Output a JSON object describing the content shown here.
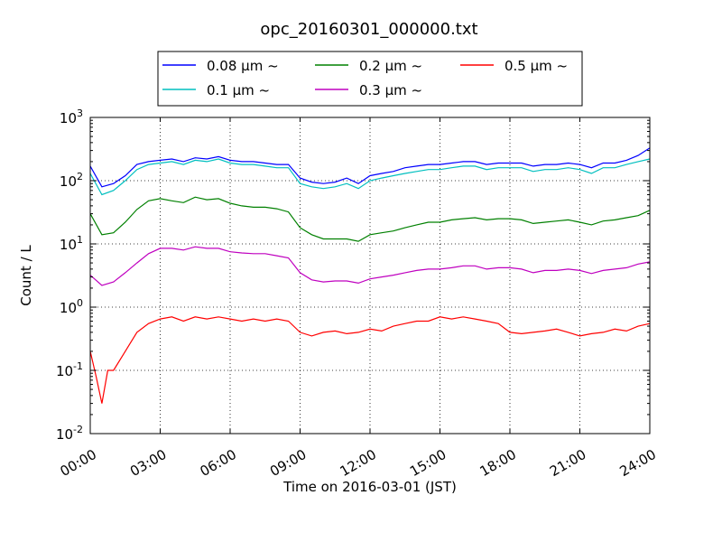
{
  "chart_data": {
    "type": "line",
    "title": "opc_20160301_000000.txt",
    "xlabel": "Time on 2016-03-01 (JST)",
    "ylabel": "Count / L",
    "y_scale": "log",
    "ylim": [
      0.01,
      1000
    ],
    "xlim": [
      "00:00",
      "24:00"
    ],
    "grid": true,
    "legend_position": "top-center",
    "x_ticks": [
      "00:00",
      "03:00",
      "06:00",
      "09:00",
      "12:00",
      "15:00",
      "18:00",
      "21:00",
      "24:00"
    ],
    "y_ticks": [
      {
        "base": "10",
        "exp": "-2"
      },
      {
        "base": "10",
        "exp": "-1"
      },
      {
        "base": "10",
        "exp": "0"
      },
      {
        "base": "10",
        "exp": "1"
      },
      {
        "base": "10",
        "exp": "2"
      },
      {
        "base": "10",
        "exp": "3"
      }
    ],
    "series": [
      {
        "name": "0.08 μm ~",
        "color": "#0000ff",
        "x": [
          "00:00",
          "00:30",
          "01:00",
          "01:30",
          "02:00",
          "02:30",
          "03:00",
          "03:30",
          "04:00",
          "04:30",
          "05:00",
          "05:30",
          "06:00",
          "06:30",
          "07:00",
          "07:30",
          "08:00",
          "08:30",
          "09:00",
          "09:30",
          "10:00",
          "10:30",
          "11:00",
          "11:30",
          "12:00",
          "12:30",
          "13:00",
          "13:30",
          "14:00",
          "14:30",
          "15:00",
          "15:30",
          "16:00",
          "16:30",
          "17:00",
          "17:30",
          "18:00",
          "18:30",
          "19:00",
          "19:30",
          "20:00",
          "20:30",
          "21:00",
          "21:30",
          "22:00",
          "22:30",
          "23:00",
          "23:30",
          "24:00"
        ],
        "y": [
          170,
          80,
          90,
          120,
          180,
          200,
          210,
          220,
          200,
          230,
          220,
          240,
          210,
          200,
          200,
          190,
          180,
          180,
          110,
          95,
          90,
          95,
          110,
          90,
          120,
          130,
          140,
          160,
          170,
          180,
          180,
          190,
          200,
          200,
          180,
          190,
          190,
          190,
          170,
          180,
          180,
          190,
          180,
          160,
          190,
          190,
          210,
          250,
          330
        ]
      },
      {
        "name": "0.1 μm ~",
        "color": "#00bfbf",
        "x": [
          "00:00",
          "00:30",
          "01:00",
          "01:30",
          "02:00",
          "02:30",
          "03:00",
          "03:30",
          "04:00",
          "04:30",
          "05:00",
          "05:30",
          "06:00",
          "06:30",
          "07:00",
          "07:30",
          "08:00",
          "08:30",
          "09:00",
          "09:30",
          "10:00",
          "10:30",
          "11:00",
          "11:30",
          "12:00",
          "12:30",
          "13:00",
          "13:30",
          "14:00",
          "14:30",
          "15:00",
          "15:30",
          "16:00",
          "16:30",
          "17:00",
          "17:30",
          "18:00",
          "18:30",
          "19:00",
          "19:30",
          "20:00",
          "20:30",
          "21:00",
          "21:30",
          "22:00",
          "22:30",
          "23:00",
          "23:30",
          "24:00"
        ],
        "y": [
          130,
          60,
          70,
          100,
          150,
          180,
          190,
          200,
          180,
          210,
          200,
          220,
          190,
          180,
          180,
          170,
          160,
          160,
          90,
          80,
          75,
          80,
          90,
          75,
          100,
          110,
          120,
          130,
          140,
          150,
          150,
          160,
          170,
          170,
          150,
          160,
          160,
          160,
          140,
          150,
          150,
          160,
          150,
          130,
          160,
          160,
          180,
          200,
          220
        ]
      },
      {
        "name": "0.2 μm ~",
        "color": "#008000",
        "x": [
          "00:00",
          "00:30",
          "01:00",
          "01:30",
          "02:00",
          "02:30",
          "03:00",
          "03:30",
          "04:00",
          "04:30",
          "05:00",
          "05:30",
          "06:00",
          "06:30",
          "07:00",
          "07:30",
          "08:00",
          "08:30",
          "09:00",
          "09:30",
          "10:00",
          "10:30",
          "11:00",
          "11:30",
          "12:00",
          "12:30",
          "13:00",
          "13:30",
          "14:00",
          "14:30",
          "15:00",
          "15:30",
          "16:00",
          "16:30",
          "17:00",
          "17:30",
          "18:00",
          "18:30",
          "19:00",
          "19:30",
          "20:00",
          "20:30",
          "21:00",
          "21:30",
          "22:00",
          "22:30",
          "23:00",
          "23:30",
          "24:00"
        ],
        "y": [
          30,
          14,
          15,
          22,
          35,
          48,
          52,
          48,
          45,
          55,
          50,
          52,
          44,
          40,
          38,
          38,
          36,
          32,
          18,
          14,
          12,
          12,
          12,
          11,
          14,
          15,
          16,
          18,
          20,
          22,
          22,
          24,
          25,
          26,
          24,
          25,
          25,
          24,
          21,
          22,
          23,
          24,
          22,
          20,
          23,
          24,
          26,
          28,
          34
        ]
      },
      {
        "name": "0.3 μm ~",
        "color": "#bf00bf",
        "x": [
          "00:00",
          "00:30",
          "01:00",
          "01:30",
          "02:00",
          "02:30",
          "03:00",
          "03:30",
          "04:00",
          "04:30",
          "05:00",
          "05:30",
          "06:00",
          "06:30",
          "07:00",
          "07:30",
          "08:00",
          "08:30",
          "09:00",
          "09:30",
          "10:00",
          "10:30",
          "11:00",
          "11:30",
          "12:00",
          "12:30",
          "13:00",
          "13:30",
          "14:00",
          "14:30",
          "15:00",
          "15:30",
          "16:00",
          "16:30",
          "17:00",
          "17:30",
          "18:00",
          "18:30",
          "19:00",
          "19:30",
          "20:00",
          "20:30",
          "21:00",
          "21:30",
          "22:00",
          "22:30",
          "23:00",
          "23:30",
          "24:00"
        ],
        "y": [
          3.2,
          2.2,
          2.5,
          3.5,
          5,
          7,
          8.5,
          8.5,
          8,
          9,
          8.5,
          8.5,
          7.5,
          7.2,
          7,
          7,
          6.5,
          6,
          3.5,
          2.7,
          2.5,
          2.6,
          2.6,
          2.4,
          2.8,
          3,
          3.2,
          3.5,
          3.8,
          4,
          4,
          4.2,
          4.5,
          4.5,
          4,
          4.2,
          4.2,
          4,
          3.5,
          3.8,
          3.8,
          4,
          3.8,
          3.4,
          3.8,
          4,
          4.2,
          4.8,
          5.2
        ]
      },
      {
        "name": "0.5 μm ~",
        "color": "#ff0000",
        "x": [
          "00:00",
          "00:15",
          "00:30",
          "00:45",
          "01:00",
          "01:30",
          "02:00",
          "02:30",
          "03:00",
          "03:30",
          "04:00",
          "04:30",
          "05:00",
          "05:30",
          "06:00",
          "06:30",
          "07:00",
          "07:30",
          "08:00",
          "08:30",
          "09:00",
          "09:30",
          "10:00",
          "10:30",
          "11:00",
          "11:30",
          "12:00",
          "12:30",
          "13:00",
          "13:30",
          "14:00",
          "14:30",
          "15:00",
          "15:30",
          "16:00",
          "16:30",
          "17:00",
          "17:30",
          "18:00",
          "18:30",
          "19:00",
          "19:30",
          "20:00",
          "20:30",
          "21:00",
          "21:30",
          "22:00",
          "22:30",
          "23:00",
          "23:30",
          "24:00"
        ],
        "y": [
          0.2,
          0.08,
          0.03,
          0.1,
          0.1,
          0.2,
          0.4,
          0.55,
          0.65,
          0.7,
          0.6,
          0.7,
          0.65,
          0.7,
          0.65,
          0.6,
          0.65,
          0.6,
          0.65,
          0.6,
          0.4,
          0.35,
          0.4,
          0.42,
          0.38,
          0.4,
          0.45,
          0.42,
          0.5,
          0.55,
          0.6,
          0.6,
          0.7,
          0.65,
          0.7,
          0.65,
          0.6,
          0.55,
          0.4,
          0.38,
          0.4,
          0.42,
          0.45,
          0.4,
          0.35,
          0.38,
          0.4,
          0.45,
          0.42,
          0.5,
          0.55
        ]
      }
    ]
  }
}
